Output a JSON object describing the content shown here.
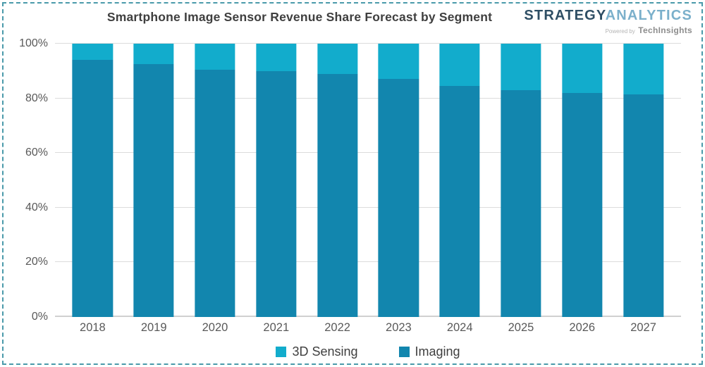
{
  "header": {
    "title": "Smartphone Image Sensor Revenue Share Forecast by Segment",
    "logo": {
      "part1": "STRATEGY",
      "part2": "ANALYTICS",
      "powered_by": "Powered by",
      "powered_brand": "TechInsights"
    }
  },
  "colors": {
    "sensing_3d": "#12accc",
    "imaging": "#1286ae",
    "gridline": "#dcdcdc",
    "border": "#4a9aaa",
    "axis_text": "#595959",
    "title_text": "#3f3f3f"
  },
  "chart_data": {
    "type": "bar",
    "stacked": true,
    "title": "Smartphone Image Sensor Revenue Share Forecast by Segment",
    "categories": [
      "2018",
      "2019",
      "2020",
      "2021",
      "2022",
      "2023",
      "2024",
      "2025",
      "2026",
      "2027"
    ],
    "series": [
      {
        "name": "Imaging",
        "color": "#1286ae",
        "values": [
          94,
          92.5,
          90.5,
          90,
          89,
          87,
          84.5,
          83,
          82,
          81.5
        ]
      },
      {
        "name": "3D Sensing",
        "color": "#12accc",
        "values": [
          6,
          7.5,
          9.5,
          10,
          11,
          13,
          15.5,
          17,
          18,
          18.5
        ]
      }
    ],
    "xlabel": "",
    "ylabel": "",
    "ylim": [
      0,
      100
    ],
    "ytick_values": [
      0,
      20,
      40,
      60,
      80,
      100
    ],
    "ytick_labels": [
      "0%",
      "20%",
      "40%",
      "60%",
      "80%",
      "100%"
    ],
    "grid": true,
    "legend_position": "bottom",
    "legend_order": [
      "3D Sensing",
      "Imaging"
    ]
  }
}
